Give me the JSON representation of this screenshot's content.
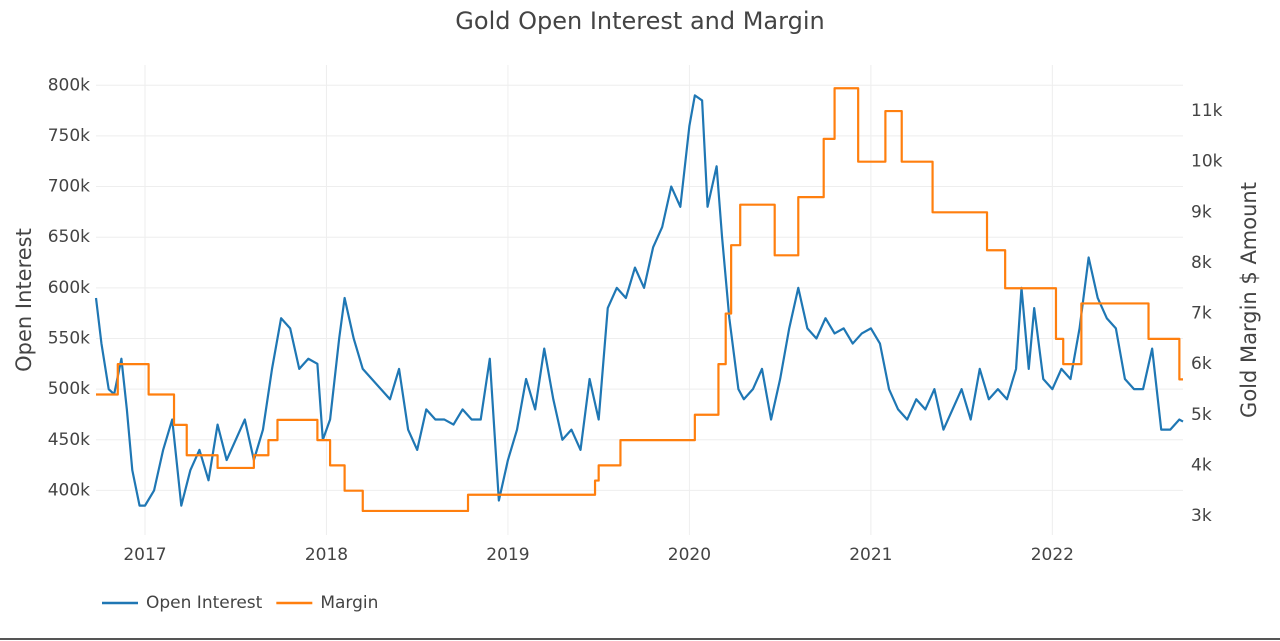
{
  "chart_data": {
    "type": "line",
    "title": "Gold Open Interest and Margin",
    "y_label": "Open Interest",
    "y2_label": "Gold Margin $ Amount",
    "xlim": [
      2016.73,
      2022.72
    ],
    "xticks": [
      2017,
      2018,
      2019,
      2020,
      2021,
      2022
    ],
    "ylim": [
      356000,
      820000
    ],
    "yticks": [
      {
        "value": 400000,
        "label": "400k"
      },
      {
        "value": 450000,
        "label": "450k"
      },
      {
        "value": 500000,
        "label": "500k"
      },
      {
        "value": 550000,
        "label": "550k"
      },
      {
        "value": 600000,
        "label": "600k"
      },
      {
        "value": 650000,
        "label": "650k"
      },
      {
        "value": 700000,
        "label": "700k"
      },
      {
        "value": 750000,
        "label": "750k"
      },
      {
        "value": 800000,
        "label": "800k"
      }
    ],
    "y2lim": [
      2625,
      11910
    ],
    "y2ticks": [
      {
        "value": 3000,
        "label": "3k"
      },
      {
        "value": 4000,
        "label": "4k"
      },
      {
        "value": 5000,
        "label": "5k"
      },
      {
        "value": 6000,
        "label": "6k"
      },
      {
        "value": 7000,
        "label": "7k"
      },
      {
        "value": 8000,
        "label": "8k"
      },
      {
        "value": 9000,
        "label": "9k"
      },
      {
        "value": 10000,
        "label": "10k"
      },
      {
        "value": 11000,
        "label": "11k"
      }
    ],
    "grid": true,
    "legend": "bottom-left",
    "series": [
      {
        "name": "Open Interest",
        "color": "#1f77b4",
        "axis": "y",
        "line_shape": "linear",
        "x": [
          2016.73,
          2016.76,
          2016.8,
          2016.83,
          2016.87,
          2016.9,
          2016.93,
          2016.97,
          2017.0,
          2017.05,
          2017.1,
          2017.15,
          2017.2,
          2017.25,
          2017.3,
          2017.35,
          2017.4,
          2017.45,
          2017.5,
          2017.55,
          2017.6,
          2017.65,
          2017.7,
          2017.75,
          2017.8,
          2017.85,
          2017.9,
          2017.95,
          2017.98,
          2018.02,
          2018.07,
          2018.1,
          2018.15,
          2018.2,
          2018.25,
          2018.3,
          2018.35,
          2018.4,
          2018.45,
          2018.5,
          2018.55,
          2018.6,
          2018.65,
          2018.7,
          2018.75,
          2018.8,
          2018.85,
          2018.9,
          2018.95,
          2019.0,
          2019.05,
          2019.1,
          2019.15,
          2019.2,
          2019.25,
          2019.3,
          2019.35,
          2019.4,
          2019.45,
          2019.5,
          2019.55,
          2019.6,
          2019.65,
          2019.7,
          2019.75,
          2019.8,
          2019.85,
          2019.9,
          2019.95,
          2020.0,
          2020.03,
          2020.07,
          2020.1,
          2020.15,
          2020.18,
          2020.22,
          2020.27,
          2020.3,
          2020.35,
          2020.4,
          2020.45,
          2020.5,
          2020.55,
          2020.6,
          2020.65,
          2020.7,
          2020.75,
          2020.8,
          2020.85,
          2020.9,
          2020.95,
          2021.0,
          2021.05,
          2021.1,
          2021.15,
          2021.2,
          2021.25,
          2021.3,
          2021.35,
          2021.4,
          2021.45,
          2021.5,
          2021.55,
          2021.6,
          2021.65,
          2021.7,
          2021.75,
          2021.8,
          2021.83,
          2021.87,
          2021.9,
          2021.95,
          2022.0,
          2022.05,
          2022.1,
          2022.15,
          2022.2,
          2022.25,
          2022.3,
          2022.35,
          2022.4,
          2022.45,
          2022.5,
          2022.55,
          2022.6,
          2022.65,
          2022.7,
          2022.72
        ],
        "values": [
          590000,
          545000,
          500000,
          495000,
          530000,
          480000,
          420000,
          385000,
          385000,
          400000,
          440000,
          470000,
          385000,
          420000,
          440000,
          410000,
          465000,
          430000,
          450000,
          470000,
          430000,
          460000,
          520000,
          570000,
          560000,
          520000,
          530000,
          525000,
          450000,
          470000,
          550000,
          590000,
          550000,
          520000,
          510000,
          500000,
          490000,
          520000,
          460000,
          440000,
          480000,
          470000,
          470000,
          465000,
          480000,
          470000,
          470000,
          530000,
          390000,
          430000,
          460000,
          510000,
          480000,
          540000,
          490000,
          450000,
          460000,
          440000,
          510000,
          470000,
          580000,
          600000,
          590000,
          620000,
          600000,
          640000,
          660000,
          700000,
          680000,
          760000,
          790000,
          785000,
          680000,
          720000,
          650000,
          570000,
          500000,
          490000,
          500000,
          520000,
          470000,
          510000,
          560000,
          600000,
          560000,
          550000,
          570000,
          555000,
          560000,
          545000,
          555000,
          560000,
          545000,
          500000,
          480000,
          470000,
          490000,
          480000,
          500000,
          460000,
          480000,
          500000,
          470000,
          520000,
          490000,
          500000,
          490000,
          520000,
          600000,
          520000,
          580000,
          510000,
          500000,
          520000,
          510000,
          560000,
          630000,
          590000,
          570000,
          560000,
          510000,
          500000,
          500000,
          540000,
          460000,
          460000,
          470000,
          468000
        ]
      },
      {
        "name": "Margin",
        "color": "#ff7f0e",
        "axis": "y2",
        "line_shape": "hv",
        "x": [
          2016.73,
          2016.85,
          2017.02,
          2017.16,
          2017.23,
          2017.4,
          2017.6,
          2017.68,
          2017.73,
          2017.95,
          2018.02,
          2018.1,
          2018.2,
          2018.78,
          2019.48,
          2019.5,
          2019.62,
          2020.03,
          2020.16,
          2020.2,
          2020.23,
          2020.28,
          2020.47,
          2020.6,
          2020.74,
          2020.8,
          2020.93,
          2021.08,
          2021.17,
          2021.34,
          2021.64,
          2021.74,
          2022.02,
          2022.06,
          2022.16,
          2022.53,
          2022.7,
          2022.72
        ],
        "values": [
          5400,
          6000,
          5400,
          4800,
          4200,
          3950,
          4200,
          4500,
          4900,
          4500,
          4000,
          3500,
          3100,
          3420,
          3700,
          4000,
          4500,
          5000,
          6000,
          7000,
          8350,
          9150,
          8150,
          9300,
          10450,
          11450,
          10000,
          11000,
          10000,
          9000,
          8250,
          7500,
          6500,
          6000,
          7200,
          6500,
          5700,
          5700
        ]
      }
    ]
  }
}
